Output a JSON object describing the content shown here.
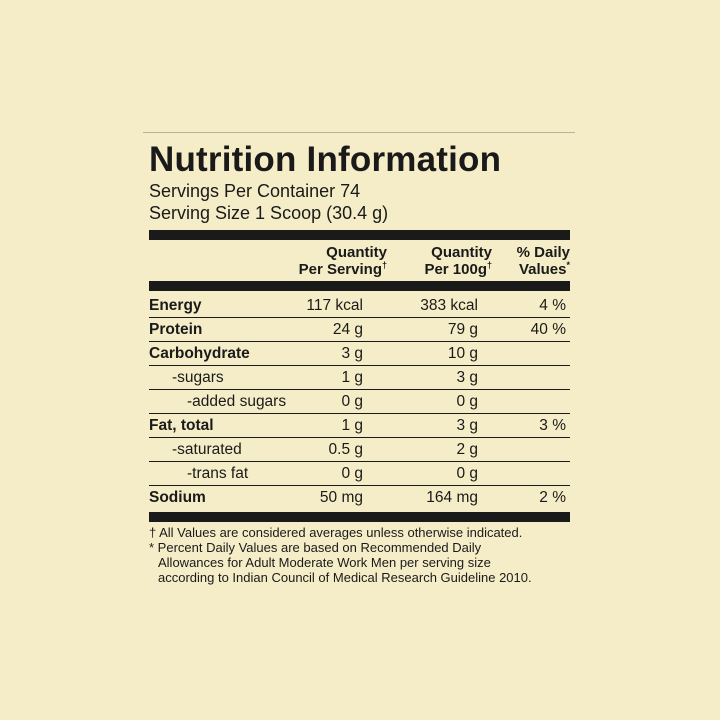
{
  "title": "Nutrition Information",
  "servings_per_container": "Servings Per Container 74",
  "serving_size": "Serving Size 1 Scoop (30.4 g)",
  "headers": {
    "per_serving_line1": "Quantity",
    "per_serving_line2": "Per Serving",
    "per_serving_mark": "†",
    "per_100g_line1": "Quantity",
    "per_100g_line2": "Per 100g",
    "per_100g_mark": "†",
    "daily_line1": "% Daily",
    "daily_line2": "Values",
    "daily_mark": "*"
  },
  "rows": [
    {
      "name": "Energy",
      "per_serving": "117 kcal",
      "per_100g": "383 kcal",
      "daily": "4 %"
    },
    {
      "name": "Protein",
      "per_serving": "24 g",
      "per_100g": "79 g",
      "daily": "40 %"
    },
    {
      "name": "Carbohydrate",
      "per_serving": "3 g",
      "per_100g": "10 g",
      "daily": ""
    },
    {
      "name": "-sugars",
      "per_serving": "1 g",
      "per_100g": "3 g",
      "daily": ""
    },
    {
      "name": "-added sugars",
      "per_serving": "0 g",
      "per_100g": "0 g",
      "daily": ""
    },
    {
      "name": "Fat, total",
      "per_serving": "1 g",
      "per_100g": "3 g",
      "daily": "3 %"
    },
    {
      "name": "-saturated",
      "per_serving": "0.5 g",
      "per_100g": "2 g",
      "daily": ""
    },
    {
      "name": "-trans fat",
      "per_serving": "0 g",
      "per_100g": "0 g",
      "daily": ""
    },
    {
      "name": "Sodium",
      "per_serving": "50 mg",
      "per_100g": "164 mg",
      "daily": "2 %"
    }
  ],
  "footnotes": {
    "line1": "† All Values are considered averages unless otherwise indicated.",
    "line2": "* Percent Daily Values are based on Recommended Daily",
    "line3": "Allowances for Adult Moderate Work Men per serving size",
    "line4": "according to Indian Council of Medical Research Guideline 2010."
  }
}
